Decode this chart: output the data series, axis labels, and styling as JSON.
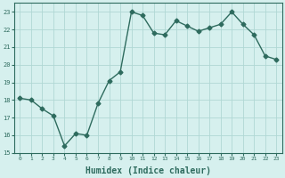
{
  "x": [
    0,
    1,
    2,
    3,
    4,
    5,
    6,
    7,
    8,
    9,
    10,
    11,
    12,
    13,
    14,
    15,
    16,
    17,
    18,
    19,
    20,
    21,
    22,
    23
  ],
  "y": [
    18.1,
    18.0,
    17.5,
    17.1,
    15.4,
    16.1,
    16.0,
    17.8,
    19.1,
    19.6,
    23.0,
    22.8,
    21.8,
    21.7,
    22.5,
    22.2,
    21.9,
    22.1,
    22.3,
    23.0,
    22.3,
    21.7,
    20.5,
    20.3
  ],
  "line_color": "#2e6b5e",
  "marker": "D",
  "markersize": 2.5,
  "linewidth": 1.0,
  "bg_color": "#d6f0ee",
  "grid_color": "#b0d8d4",
  "xlabel": "Humidex (Indice chaleur)",
  "xlabel_fontsize": 7,
  "xlabel_color": "#2e6b5e",
  "tick_color": "#2e6b5e",
  "ylim": [
    15,
    23.5
  ],
  "xlim": [
    -0.5,
    23.5
  ],
  "yticks": [
    15,
    16,
    17,
    18,
    19,
    20,
    21,
    22,
    23
  ],
  "xticks": [
    0,
    1,
    2,
    3,
    4,
    5,
    6,
    7,
    8,
    9,
    10,
    11,
    12,
    13,
    14,
    15,
    16,
    17,
    18,
    19,
    20,
    21,
    22,
    23
  ]
}
